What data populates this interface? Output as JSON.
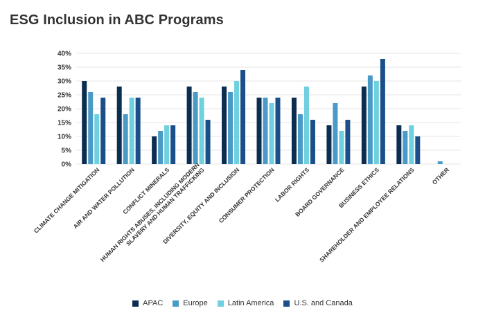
{
  "title": "ESG Inclusion in ABC Programs",
  "chart_data": {
    "type": "bar",
    "categories": [
      [
        "CLIMATE CHANGE MITIGATION"
      ],
      [
        "AIR AND WATER POLLUTION"
      ],
      [
        "CONFLICT MINERALS"
      ],
      [
        "HUMAN RIGHTS ABUSES, INCLUDING MODERN",
        "SLAVERY AND HUMAN TRAFFICKING"
      ],
      [
        "DIVERSITY, EQUITY AND INCLUSION"
      ],
      [
        "CONSUMER PROTECTION"
      ],
      [
        "LABOR RIGHTS"
      ],
      [
        "BOARD GOVERNANCE"
      ],
      [
        "BUSINESS ETHICS"
      ],
      [
        "SHAREHOLDER AND EMPLOYEE RELATIONS"
      ],
      [
        "OTHER"
      ]
    ],
    "series": [
      {
        "name": "APAC",
        "color": "#0b2d4f",
        "values": [
          30,
          28,
          10,
          28,
          28,
          24,
          24,
          14,
          28,
          14,
          0
        ]
      },
      {
        "name": "Europe",
        "color": "#4a9ac8",
        "values": [
          26,
          18,
          12,
          26,
          26,
          24,
          18,
          22,
          32,
          12,
          1
        ]
      },
      {
        "name": "Latin America",
        "color": "#6fd0df",
        "values": [
          18,
          24,
          14,
          24,
          30,
          22,
          28,
          12,
          30,
          14,
          0
        ]
      },
      {
        "name": "U.S. and Canada",
        "color": "#1a4f8a",
        "values": [
          24,
          24,
          14,
          16,
          34,
          24,
          16,
          16,
          38,
          10,
          0
        ]
      }
    ],
    "ylim": [
      0,
      40
    ],
    "yticks": [
      "0%",
      "5%",
      "10%",
      "15%",
      "20%",
      "25%",
      "30%",
      "35%",
      "40%"
    ],
    "grid": true,
    "legend_position": "bottom"
  }
}
